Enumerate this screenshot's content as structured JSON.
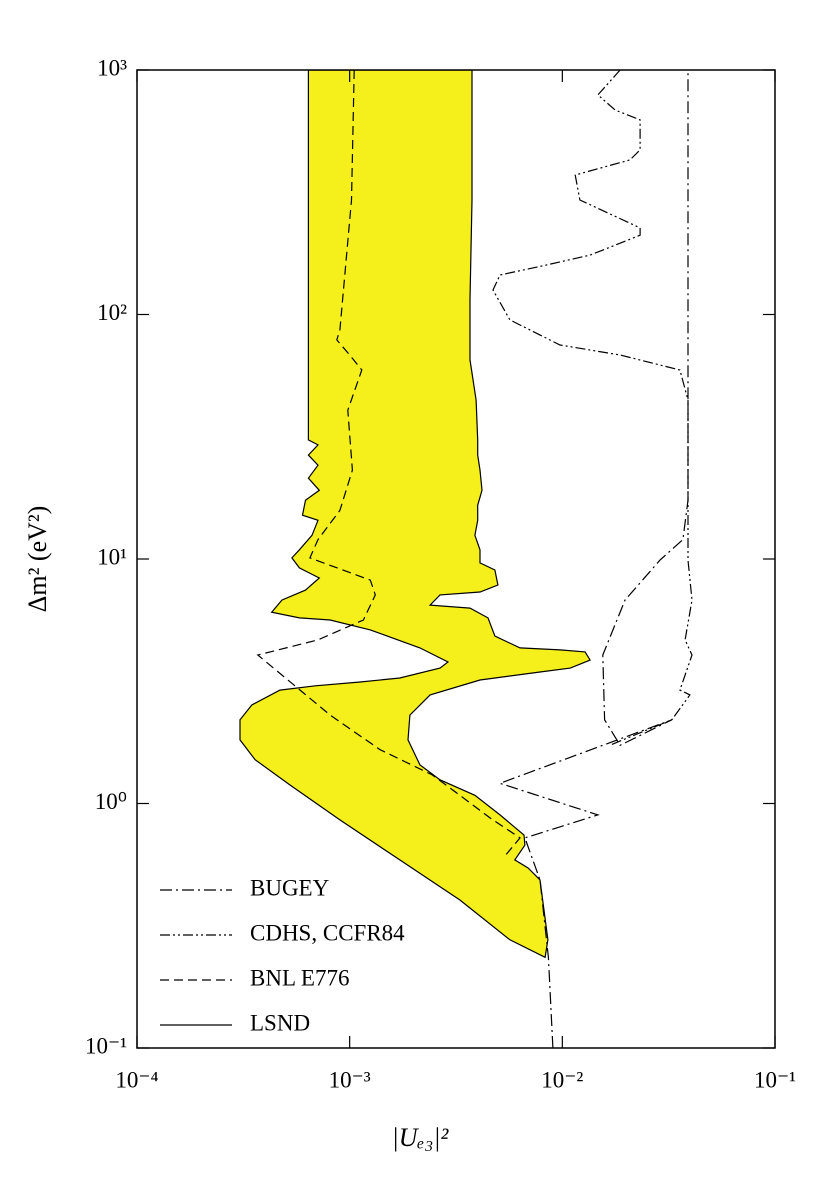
{
  "chart_data": {
    "type": "line",
    "x_label": "|Uₑ₃|²",
    "y_label": "Δm² (eV²)",
    "xscale": "log",
    "yscale": "log",
    "xlim": [
      0.0001,
      0.1
    ],
    "ylim": [
      0.1,
      1000
    ],
    "xticks": [
      {
        "value": 0.0001,
        "label": "10⁻⁴"
      },
      {
        "value": 0.001,
        "label": "10⁻³"
      },
      {
        "value": 0.01,
        "label": "10⁻²"
      },
      {
        "value": 0.1,
        "label": "10⁻¹"
      }
    ],
    "yticks": [
      {
        "value": 0.1,
        "label": "10⁻¹"
      },
      {
        "value": 1,
        "label": "10⁰"
      },
      {
        "value": 10,
        "label": "10¹"
      },
      {
        "value": 100,
        "label": "10²"
      },
      {
        "value": 1000,
        "label": "10³"
      }
    ],
    "legend": "lower left",
    "series": [
      {
        "name": "BUGEY",
        "color": "#000000",
        "dash": "dashdot",
        "x": [
          0.00903,
          0.0086,
          0.00785,
          0.00667,
          0.0147,
          0.00509,
          0.0327,
          0.0187,
          0.0158,
          0.0155,
          0.0197,
          0.0288,
          0.0369,
          0.039,
          0.039
        ],
        "y": [
          0.1,
          0.235,
          0.487,
          0.723,
          0.898,
          1.21,
          2.2,
          1.73,
          2.2,
          4.05,
          6.79,
          9.9,
          12.0,
          17.4,
          1000
        ]
      },
      {
        "name": "CDHS, CCFR84",
        "color": "#000000",
        "dash": "dashdotdot",
        "x": [
          0.0187,
          0.0147,
          0.0177,
          0.0232,
          0.0232,
          0.0208,
          0.0115,
          0.0121,
          0.0232,
          0.0232,
          0.0135,
          0.0083,
          0.00509,
          0.00472,
          0.00567,
          0.00975,
          0.0187,
          0.0357,
          0.039,
          0.039,
          0.0407,
          0.0378,
          0.0407,
          0.0357,
          0.0398,
          0.0327,
          0.0167
        ],
        "y": [
          1000,
          791,
          686,
          625,
          471,
          429,
          372,
          294,
          226,
          211,
          175,
          159,
          145,
          126,
          95,
          75,
          68.3,
          59.3,
          44.7,
          9.9,
          6.79,
          4.67,
          4.05,
          2.91,
          2.78,
          2.2,
          1.73
        ]
      },
      {
        "name": "BNL E776",
        "color": "#000000",
        "dash": "dashed",
        "x": [
          0.00105,
          0.00102,
          0.0009,
          0.00087,
          0.001,
          0.00114,
          0.00098,
          0.00103,
          0.0009,
          0.00071,
          0.00065,
          0.00125,
          0.00132,
          0.00116,
          0.00071,
          0.00037,
          0.00081,
          0.00139,
          0.00244,
          0.0033,
          0.00457,
          0.00632,
          0.00537
        ],
        "y": [
          1000,
          294,
          86.5,
          78.7,
          68.3,
          59.3,
          40.6,
          23.1,
          15.8,
          12.0,
          10.1,
          8.2,
          7.13,
          5.63,
          4.67,
          4.05,
          2.3,
          1.66,
          1.31,
          1.08,
          0.873,
          0.723,
          0.61
        ]
      },
      {
        "name": "LSND",
        "color": "#000000",
        "fill": "#f5f01c",
        "dash": "solid",
        "x": [
          0.00064,
          0.00064,
          0.00071,
          0.00064,
          0.00071,
          0.00064,
          0.00072,
          0.00062,
          0.0006,
          0.00071,
          0.000665,
          0.00058,
          0.000535,
          0.00058,
          0.00072,
          0.00062,
          0.00048,
          0.00043,
          0.00058,
          0.00081,
          0.00125,
          0.00214,
          0.0029,
          0.00266,
          0.00172,
          0.00112,
          0.00069,
          0.00047,
          0.000347,
          0.000305,
          0.000305,
          0.000359,
          0.000524,
          0.0009,
          0.00172,
          0.0033,
          0.00567,
          0.0083,
          0.00855,
          0.00785,
          0.0069,
          0.00598,
          0.00667,
          0.0066,
          0.00509,
          0.00388,
          0.00266,
          0.00214,
          0.00188,
          0.00192,
          0.00239,
          0.0041,
          0.00785,
          0.0109,
          0.0135,
          0.0128,
          0.00975,
          0.00632,
          0.00482,
          0.00447,
          0.00368,
          0.00239,
          0.00266,
          0.0041,
          0.00498,
          0.00482,
          0.0041,
          0.0041,
          0.00388,
          0.004,
          0.004,
          0.00419,
          0.0041,
          0.004,
          0.004,
          0.00393,
          0.00368,
          0.00368,
          0.00376,
          0.00376
        ],
        "y": [
          1000,
          30.7,
          29.3,
          26.6,
          24.2,
          21.4,
          19.1,
          17.4,
          15.1,
          14.4,
          12.5,
          10.9,
          10.1,
          9.2,
          8.36,
          7.46,
          6.79,
          6.06,
          5.74,
          5.63,
          5.13,
          4.33,
          3.79,
          3.58,
          3.26,
          3.14,
          3.03,
          2.91,
          2.53,
          2.2,
          1.82,
          1.51,
          1.19,
          0.857,
          0.588,
          0.403,
          0.277,
          0.235,
          0.277,
          0.487,
          0.545,
          0.588,
          0.676,
          0.743,
          0.898,
          1.08,
          1.25,
          1.44,
          1.82,
          2.3,
          2.78,
          3.2,
          3.45,
          3.58,
          3.86,
          4.17,
          4.25,
          4.33,
          4.84,
          5.74,
          6.3,
          6.48,
          7.13,
          7.33,
          7.83,
          9.02,
          9.64,
          10.9,
          12.5,
          14.4,
          16.6,
          19.1,
          23.1,
          26.6,
          30.7,
          44.7,
          65.2,
          115,
          294,
          1000
        ]
      }
    ]
  }
}
